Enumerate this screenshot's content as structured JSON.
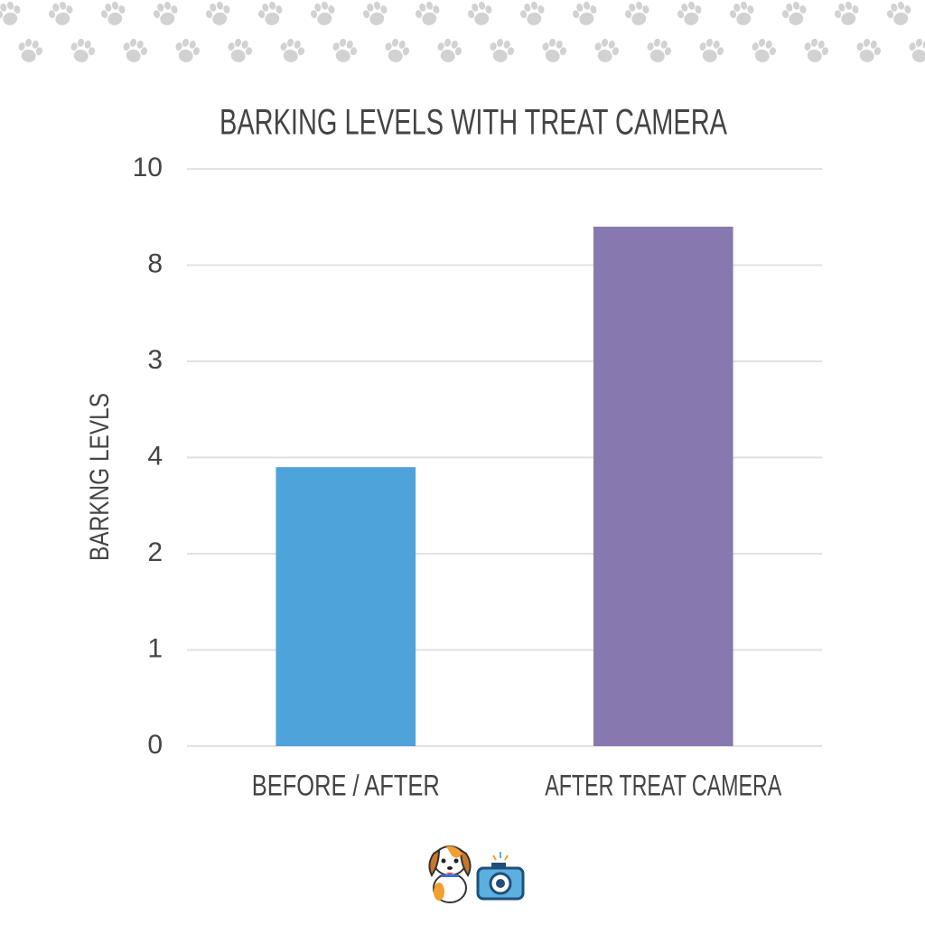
{
  "chart_data": {
    "type": "bar",
    "title": "BARKING LEVELS WITH TREAT CAMERA",
    "y_label": "BARKNG LEVLS",
    "categories": [
      "BEFORE / AFTER",
      "AFTER TREAT CAMERA"
    ],
    "values": [
      2.9,
      5.4
    ],
    "colors": [
      "#4ea3da",
      "#8878b0"
    ],
    "ylim": [
      0,
      6
    ],
    "yticks": [
      0,
      1,
      2,
      {
        "value": 3,
        "label": "4"
      },
      {
        "value": 4,
        "label": "3"
      },
      {
        "value": 5,
        "label": "8"
      },
      {
        "value": 6,
        "label": "10"
      }
    ],
    "grid": true
  }
}
